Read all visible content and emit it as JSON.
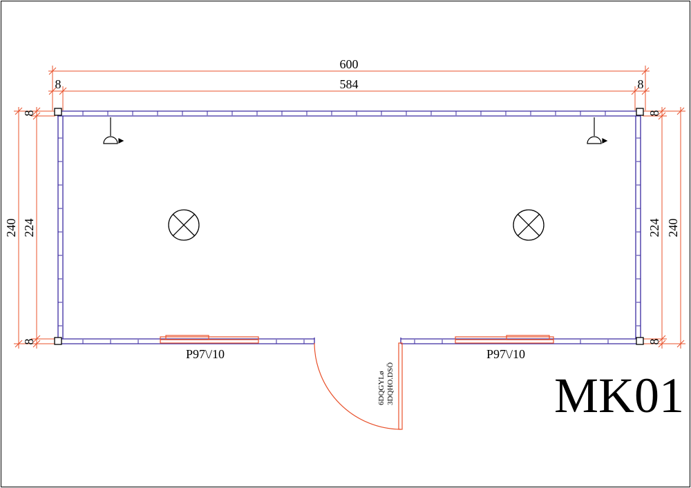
{
  "drawing": {
    "title": "MK01",
    "colors": {
      "wall": "#3a2aa0",
      "dimension": "#e8502a",
      "door": "#e8502a",
      "text": "#000000",
      "frame": "#000000"
    }
  },
  "dimensions": {
    "overall_width": "600",
    "inner_width": "584",
    "left_offset": "8",
    "right_offset": "8",
    "left_overall_height": "240",
    "left_inner_height": "224",
    "left_top_offset": "8",
    "left_bottom_offset": "8",
    "right_overall_height": "240",
    "right_inner_height": "224",
    "right_top_offset": "8",
    "right_bottom_offset": "8"
  },
  "windows": [
    {
      "label": "P97\\/10"
    },
    {
      "label": "P97\\/10"
    }
  ],
  "door": {
    "line1": "6DQGYLø",
    "line2": "3DQHO.DSÖ"
  },
  "fixtures": {
    "ceiling_lights": [
      "light-fixture-icon",
      "light-fixture-icon"
    ],
    "wall_lamps": [
      "wall-lamp-icon",
      "wall-lamp-icon"
    ]
  }
}
